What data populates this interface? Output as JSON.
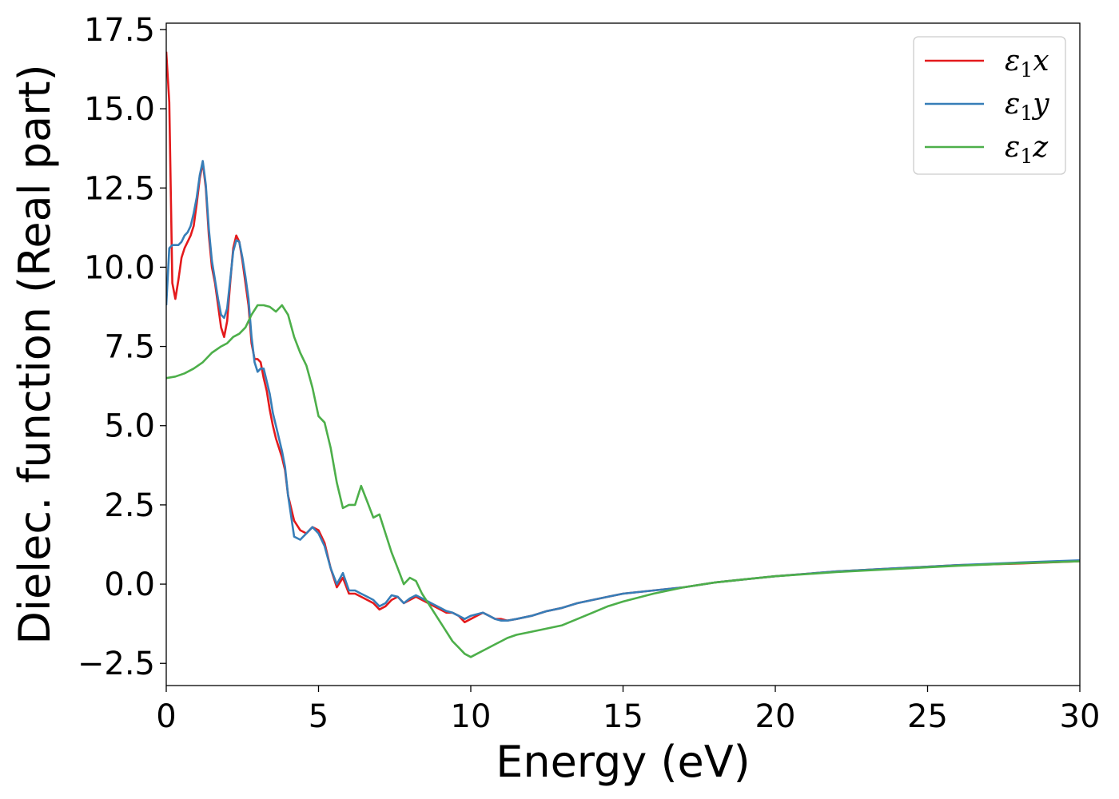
{
  "chart_data": {
    "type": "line",
    "xlabel": "Energy (eV)",
    "ylabel": "Dielec. function (Real part)",
    "xlim": [
      0,
      30
    ],
    "ylim": [
      -3.2,
      17.7
    ],
    "xticks": [
      0,
      5,
      10,
      15,
      20,
      25,
      30
    ],
    "yticks": [
      -2.5,
      0.0,
      2.5,
      5.0,
      7.5,
      10.0,
      12.5,
      15.0,
      17.5
    ],
    "ytick_labels": [
      "−2.5",
      "0.0",
      "2.5",
      "5.0",
      "7.5",
      "10.0",
      "12.5",
      "15.0",
      "17.5"
    ],
    "grid": false,
    "legend_position": "top-right",
    "series": [
      {
        "name": "ε1x",
        "legend_base": "ε",
        "legend_sub": "1",
        "legend_suffix": "x",
        "color": "#e41a1c",
        "x": [
          0,
          0.1,
          0.2,
          0.3,
          0.4,
          0.5,
          0.6,
          0.7,
          0.8,
          0.9,
          1.0,
          1.1,
          1.2,
          1.3,
          1.4,
          1.5,
          1.6,
          1.7,
          1.8,
          1.9,
          2.0,
          2.1,
          2.2,
          2.3,
          2.4,
          2.5,
          2.6,
          2.7,
          2.8,
          2.9,
          3.0,
          3.1,
          3.2,
          3.3,
          3.4,
          3.5,
          3.6,
          3.7,
          3.8,
          3.9,
          4.0,
          4.2,
          4.4,
          4.6,
          4.8,
          5.0,
          5.2,
          5.4,
          5.6,
          5.8,
          6.0,
          6.2,
          6.4,
          6.6,
          6.8,
          7.0,
          7.2,
          7.4,
          7.6,
          7.8,
          8.0,
          8.2,
          8.4,
          8.6,
          8.8,
          9.0,
          9.2,
          9.4,
          9.6,
          9.8,
          10.0,
          10.2,
          10.4,
          10.6,
          10.8,
          11.0,
          11.2,
          11.5,
          12.0,
          12.5,
          13.0,
          13.5,
          14.0,
          14.5,
          15.0,
          16.0,
          17.0,
          18.0,
          19.0,
          20.0,
          22.0,
          24.0,
          26.0,
          28.0,
          30.0
        ],
        "y": [
          16.8,
          15.2,
          9.5,
          9.0,
          9.6,
          10.3,
          10.6,
          10.8,
          11.0,
          11.3,
          12.0,
          12.8,
          13.3,
          12.5,
          11.0,
          10.0,
          9.5,
          8.8,
          8.1,
          7.8,
          8.3,
          9.5,
          10.6,
          11.0,
          10.8,
          10.2,
          9.5,
          8.8,
          7.6,
          7.1,
          7.1,
          7.0,
          6.5,
          6.1,
          5.5,
          5.0,
          4.6,
          4.3,
          4.0,
          3.6,
          2.8,
          2.0,
          1.7,
          1.6,
          1.8,
          1.7,
          1.3,
          0.5,
          -0.1,
          0.2,
          -0.3,
          -0.3,
          -0.4,
          -0.5,
          -0.6,
          -0.8,
          -0.7,
          -0.5,
          -0.4,
          -0.6,
          -0.5,
          -0.4,
          -0.5,
          -0.6,
          -0.7,
          -0.8,
          -0.9,
          -0.9,
          -1.0,
          -1.2,
          -1.1,
          -1.0,
          -0.9,
          -1.0,
          -1.1,
          -1.1,
          -1.15,
          -1.1,
          -1.0,
          -0.85,
          -0.75,
          -0.6,
          -0.5,
          -0.4,
          -0.3,
          -0.2,
          -0.1,
          0.05,
          0.15,
          0.25,
          0.4,
          0.5,
          0.6,
          0.65,
          0.72
        ]
      },
      {
        "name": "ε1y",
        "legend_base": "ε",
        "legend_sub": "1",
        "legend_suffix": "y",
        "color": "#377eb8",
        "x": [
          0,
          0.1,
          0.2,
          0.3,
          0.4,
          0.5,
          0.6,
          0.7,
          0.8,
          0.9,
          1.0,
          1.1,
          1.2,
          1.3,
          1.4,
          1.5,
          1.6,
          1.7,
          1.8,
          1.9,
          2.0,
          2.1,
          2.2,
          2.3,
          2.4,
          2.5,
          2.6,
          2.7,
          2.8,
          2.9,
          3.0,
          3.1,
          3.2,
          3.3,
          3.4,
          3.5,
          3.6,
          3.7,
          3.8,
          3.9,
          4.0,
          4.2,
          4.4,
          4.6,
          4.8,
          5.0,
          5.2,
          5.4,
          5.6,
          5.8,
          6.0,
          6.2,
          6.4,
          6.6,
          6.8,
          7.0,
          7.2,
          7.4,
          7.6,
          7.8,
          8.0,
          8.2,
          8.4,
          8.6,
          8.8,
          9.0,
          9.2,
          9.4,
          9.6,
          9.8,
          10.0,
          10.2,
          10.4,
          10.6,
          10.8,
          11.0,
          11.2,
          11.5,
          12.0,
          12.5,
          13.0,
          13.5,
          14.0,
          14.5,
          15.0,
          16.0,
          17.0,
          18.0,
          19.0,
          20.0,
          22.0,
          24.0,
          26.0,
          28.0,
          30.0
        ],
        "y": [
          8.8,
          10.6,
          10.7,
          10.7,
          10.7,
          10.8,
          11.0,
          11.1,
          11.3,
          11.7,
          12.2,
          12.9,
          13.35,
          12.6,
          11.2,
          10.2,
          9.6,
          9.0,
          8.5,
          8.4,
          8.7,
          9.6,
          10.5,
          10.85,
          10.8,
          10.3,
          9.7,
          9.0,
          7.8,
          7.0,
          6.7,
          6.8,
          6.8,
          6.4,
          6.0,
          5.4,
          5.0,
          4.6,
          4.2,
          3.7,
          2.8,
          1.5,
          1.4,
          1.6,
          1.8,
          1.6,
          1.2,
          0.5,
          0.0,
          0.35,
          -0.2,
          -0.2,
          -0.3,
          -0.4,
          -0.5,
          -0.7,
          -0.6,
          -0.35,
          -0.4,
          -0.6,
          -0.45,
          -0.35,
          -0.45,
          -0.55,
          -0.65,
          -0.75,
          -0.85,
          -0.9,
          -1.0,
          -1.1,
          -1.0,
          -0.95,
          -0.9,
          -1.0,
          -1.1,
          -1.15,
          -1.15,
          -1.1,
          -1.0,
          -0.85,
          -0.75,
          -0.6,
          -0.5,
          -0.4,
          -0.3,
          -0.2,
          -0.1,
          0.05,
          0.15,
          0.25,
          0.4,
          0.5,
          0.6,
          0.68,
          0.75
        ]
      },
      {
        "name": "ε1z",
        "legend_base": "ε",
        "legend_sub": "1",
        "legend_suffix": "z",
        "color": "#4daf4a",
        "x": [
          0,
          0.3,
          0.6,
          0.9,
          1.2,
          1.5,
          1.8,
          2.0,
          2.2,
          2.4,
          2.6,
          2.8,
          3.0,
          3.2,
          3.4,
          3.6,
          3.8,
          4.0,
          4.2,
          4.4,
          4.6,
          4.8,
          5.0,
          5.2,
          5.4,
          5.6,
          5.8,
          6.0,
          6.2,
          6.4,
          6.6,
          6.8,
          7.0,
          7.2,
          7.4,
          7.6,
          7.8,
          8.0,
          8.2,
          8.4,
          8.6,
          8.8,
          9.0,
          9.2,
          9.4,
          9.6,
          9.8,
          10.0,
          10.2,
          10.4,
          10.6,
          10.8,
          11.0,
          11.2,
          11.5,
          12.0,
          12.5,
          13.0,
          13.5,
          14.0,
          14.5,
          15.0,
          16.0,
          17.0,
          18.0,
          19.0,
          20.0,
          22.0,
          24.0,
          26.0,
          28.0,
          30.0
        ],
        "y": [
          6.5,
          6.55,
          6.65,
          6.8,
          7.0,
          7.3,
          7.5,
          7.6,
          7.8,
          7.9,
          8.1,
          8.5,
          8.8,
          8.8,
          8.75,
          8.6,
          8.8,
          8.5,
          7.8,
          7.3,
          6.9,
          6.2,
          5.3,
          5.1,
          4.3,
          3.2,
          2.4,
          2.5,
          2.5,
          3.1,
          2.6,
          2.1,
          2.2,
          1.6,
          1.0,
          0.5,
          0.0,
          0.2,
          0.1,
          -0.3,
          -0.6,
          -0.9,
          -1.2,
          -1.5,
          -1.8,
          -2.0,
          -2.2,
          -2.3,
          -2.2,
          -2.1,
          -2.0,
          -1.9,
          -1.8,
          -1.7,
          -1.6,
          -1.5,
          -1.4,
          -1.3,
          -1.1,
          -0.9,
          -0.7,
          -0.55,
          -0.3,
          -0.1,
          0.05,
          0.15,
          0.25,
          0.38,
          0.48,
          0.58,
          0.66,
          0.72
        ]
      }
    ]
  }
}
